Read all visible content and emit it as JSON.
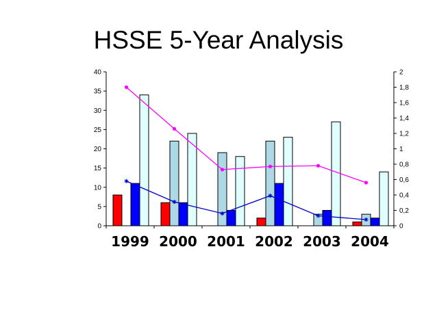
{
  "chart_data": {
    "type": "bar",
    "title": "HSSE 5-Year Analysis",
    "categories": [
      "1999",
      "2000",
      "2001",
      "2002",
      "2003",
      "2004"
    ],
    "y_left": {
      "min": 0,
      "max": 40,
      "ticks": [
        "0",
        "5",
        "10",
        "15",
        "20",
        "25",
        "30",
        "35",
        "40"
      ]
    },
    "y_right": {
      "min": 0,
      "max": 2,
      "ticks": [
        "0",
        "0,2",
        "0,4",
        "0,6",
        "0,8",
        "1",
        "1,2",
        "1,4",
        "1,6",
        "1,8",
        "2"
      ]
    },
    "bar_series": [
      {
        "color": "#ff0000",
        "values": [
          8,
          6,
          0,
          2,
          0,
          1
        ]
      },
      {
        "color": "#add8e6",
        "values": [
          0,
          22,
          19,
          22,
          3,
          3
        ]
      },
      {
        "color": "#0000ff",
        "values": [
          11,
          6,
          4,
          11,
          4,
          2
        ]
      },
      {
        "color": "#e0ffff",
        "values": [
          34,
          24,
          18,
          23,
          27,
          14
        ]
      }
    ],
    "line_series": [
      {
        "color": "#ff00ff",
        "marker": "dot",
        "axis": "right",
        "values": [
          1.8,
          1.26,
          0.73,
          0.77,
          0.78,
          0.56
        ]
      },
      {
        "color": "#0000cc",
        "marker": "star",
        "axis": "right",
        "values": [
          0.58,
          0.31,
          0.16,
          0.39,
          0.13,
          0.08
        ]
      }
    ],
    "grid": false
  }
}
